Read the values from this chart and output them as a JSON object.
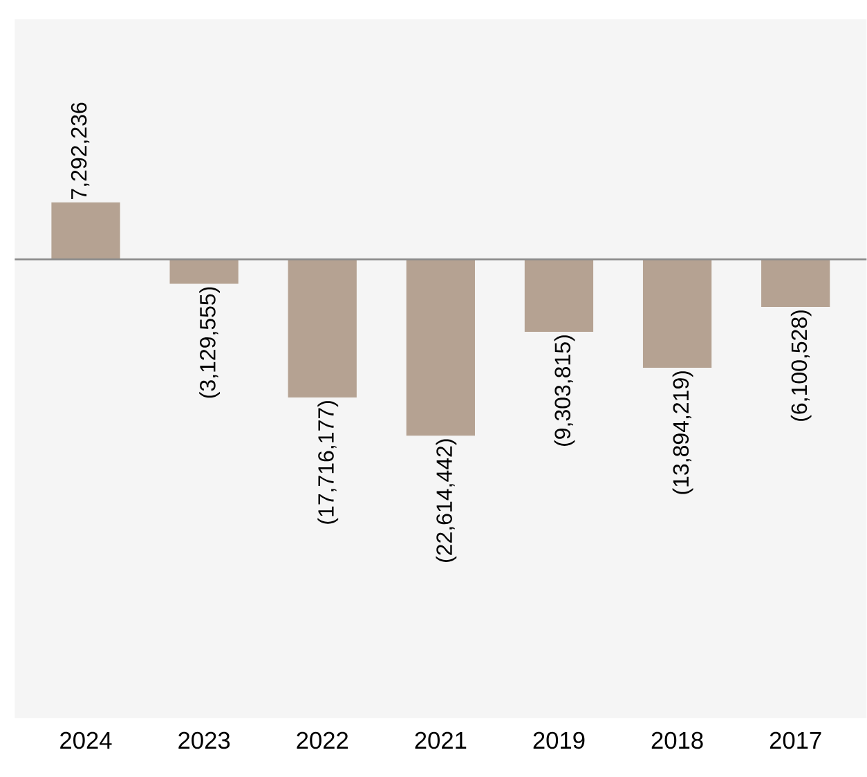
{
  "chart_data": {
    "type": "bar",
    "categories": [
      "2024",
      "2023",
      "2022",
      "2021",
      "2019",
      "2018",
      "2017"
    ],
    "values": [
      7292236,
      -3129555,
      -17716177,
      -22614442,
      -9303815,
      -13894219,
      -6100528
    ],
    "value_labels": [
      "7,292,236",
      "(3,129,555)",
      "(17,716,177)",
      "(22,614,442)",
      "(9,303,815)",
      "(13,894,219)",
      "(6,100,528)"
    ],
    "color": "#b5a292"
  }
}
